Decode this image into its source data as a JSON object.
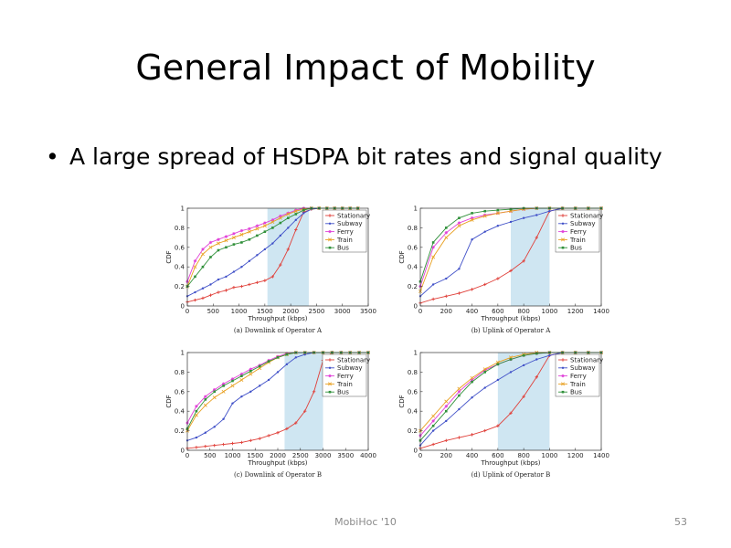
{
  "slide": {
    "title": "General Impact of Mobility",
    "bullet": "A large spread of HSDPA bit rates and signal quality",
    "footer_center": "MobiHoc '10",
    "page_number": "53"
  },
  "colors": {
    "Stationary": "#e0403a",
    "Subway": "#4050c8",
    "Ferry": "#e040d8",
    "Train": "#e8a020",
    "Bus": "#30903a",
    "shade": "#cfe6f2"
  },
  "chart_data": [
    {
      "type": "line",
      "caption": "(a) Downlink of Operator A",
      "xlabel": "Throughput (kbps)",
      "ylabel": "CDF",
      "xlim": [
        0,
        3500
      ],
      "ylim": [
        0,
        1
      ],
      "xticks": [
        0,
        500,
        1000,
        1500,
        2000,
        2500,
        3000,
        3500
      ],
      "yticks": [
        0,
        0.2,
        0.4,
        0.6,
        0.8,
        1
      ],
      "ytick_labels": [
        "0",
        "0.2",
        "0.4",
        "0.6",
        "0.8",
        "1"
      ],
      "shade": [
        1550,
        2350
      ],
      "legend": [
        "Stationary",
        "Subway",
        "Ferry",
        "Train",
        "Bus"
      ],
      "series": [
        {
          "name": "Stationary",
          "x": [
            0,
            150,
            300,
            450,
            600,
            750,
            900,
            1050,
            1200,
            1350,
            1500,
            1650,
            1800,
            1950,
            2100,
            2250,
            2400,
            2550,
            2700,
            2850,
            3000,
            3150,
            3300
          ],
          "y": [
            0.04,
            0.06,
            0.08,
            0.11,
            0.14,
            0.16,
            0.19,
            0.2,
            0.22,
            0.24,
            0.26,
            0.3,
            0.42,
            0.58,
            0.78,
            0.96,
            0.99,
            1,
            1,
            1,
            1,
            1,
            1
          ]
        },
        {
          "name": "Subway",
          "x": [
            0,
            150,
            300,
            450,
            600,
            750,
            900,
            1050,
            1200,
            1350,
            1500,
            1650,
            1800,
            1950,
            2100,
            2250,
            2400,
            2550,
            2700,
            2850,
            3000,
            3150,
            3300
          ],
          "y": [
            0.1,
            0.14,
            0.18,
            0.22,
            0.27,
            0.3,
            0.35,
            0.4,
            0.46,
            0.52,
            0.58,
            0.64,
            0.72,
            0.8,
            0.88,
            0.95,
            0.99,
            1,
            1,
            1,
            1,
            1,
            1
          ]
        },
        {
          "name": "Ferry",
          "x": [
            0,
            150,
            300,
            450,
            600,
            750,
            900,
            1050,
            1200,
            1350,
            1500,
            1650,
            1800,
            1950,
            2100,
            2250,
            2400,
            2550,
            2700,
            2850,
            3000,
            3150,
            3300
          ],
          "y": [
            0.25,
            0.46,
            0.58,
            0.65,
            0.68,
            0.71,
            0.74,
            0.77,
            0.79,
            0.82,
            0.85,
            0.88,
            0.92,
            0.95,
            0.98,
            1,
            1,
            1,
            1,
            1,
            1,
            1,
            1
          ]
        },
        {
          "name": "Train",
          "x": [
            0,
            150,
            300,
            450,
            600,
            750,
            900,
            1050,
            1200,
            1350,
            1500,
            1650,
            1800,
            1950,
            2100,
            2250,
            2400,
            2550,
            2700,
            2850,
            3000,
            3150,
            3300
          ],
          "y": [
            0.2,
            0.4,
            0.53,
            0.6,
            0.64,
            0.67,
            0.7,
            0.73,
            0.76,
            0.79,
            0.82,
            0.86,
            0.9,
            0.94,
            0.97,
            0.99,
            1,
            1,
            1,
            1,
            1,
            1,
            1
          ]
        },
        {
          "name": "Bus",
          "x": [
            0,
            150,
            300,
            450,
            600,
            750,
            900,
            1050,
            1200,
            1350,
            1500,
            1650,
            1800,
            1950,
            2100,
            2250,
            2400,
            2550,
            2700,
            2850,
            3000,
            3150,
            3300
          ],
          "y": [
            0.2,
            0.3,
            0.4,
            0.5,
            0.57,
            0.6,
            0.63,
            0.65,
            0.68,
            0.72,
            0.76,
            0.8,
            0.85,
            0.9,
            0.94,
            0.98,
            1,
            1,
            1,
            1,
            1,
            1,
            1
          ]
        }
      ]
    },
    {
      "type": "line",
      "caption": "(b) Uplink of Operator A",
      "xlabel": "Throughput (kbps)",
      "ylabel": "CDF",
      "xlim": [
        0,
        1400
      ],
      "ylim": [
        0,
        1
      ],
      "xticks": [
        0,
        200,
        400,
        600,
        800,
        1000,
        1200,
        1400
      ],
      "yticks": [
        0,
        0.2,
        0.4,
        0.6,
        0.8,
        1
      ],
      "ytick_labels": [
        "0",
        "0.2",
        "0.4",
        "0.6",
        "0.8",
        "1"
      ],
      "shade": [
        700,
        1000
      ],
      "legend": [
        "Stationary",
        "Subway",
        "Ferry",
        "Train",
        "Bus"
      ],
      "series": [
        {
          "name": "Stationary",
          "x": [
            0,
            100,
            200,
            300,
            400,
            500,
            600,
            700,
            800,
            900,
            1000,
            1100,
            1200,
            1300,
            1400
          ],
          "y": [
            0.03,
            0.07,
            0.1,
            0.13,
            0.17,
            0.22,
            0.28,
            0.36,
            0.46,
            0.7,
            0.97,
            1,
            1,
            1,
            1
          ]
        },
        {
          "name": "Subway",
          "x": [
            0,
            100,
            200,
            300,
            400,
            500,
            600,
            700,
            800,
            900,
            1000,
            1100,
            1200,
            1300,
            1400
          ],
          "y": [
            0.1,
            0.22,
            0.28,
            0.38,
            0.68,
            0.76,
            0.82,
            0.86,
            0.9,
            0.93,
            0.97,
            1,
            1,
            1,
            1
          ]
        },
        {
          "name": "Ferry",
          "x": [
            0,
            100,
            200,
            300,
            400,
            500,
            600,
            700,
            800,
            900,
            1000,
            1100,
            1200,
            1300,
            1400
          ],
          "y": [
            0.2,
            0.6,
            0.75,
            0.85,
            0.9,
            0.93,
            0.95,
            0.97,
            0.99,
            1,
            1,
            1,
            1,
            1,
            1
          ]
        },
        {
          "name": "Train",
          "x": [
            0,
            100,
            200,
            300,
            400,
            500,
            600,
            700,
            800,
            900,
            1000,
            1100,
            1200,
            1300,
            1400
          ],
          "y": [
            0.15,
            0.5,
            0.7,
            0.82,
            0.88,
            0.92,
            0.95,
            0.97,
            0.99,
            1,
            1,
            1,
            1,
            1,
            1
          ]
        },
        {
          "name": "Bus",
          "x": [
            0,
            100,
            200,
            300,
            400,
            500,
            600,
            700,
            800,
            900,
            1000,
            1100,
            1200,
            1300,
            1400
          ],
          "y": [
            0.25,
            0.65,
            0.8,
            0.9,
            0.95,
            0.97,
            0.98,
            0.99,
            1,
            1,
            1,
            1,
            1,
            1,
            1
          ]
        }
      ]
    },
    {
      "type": "line",
      "caption": "(c) Downlink of Operator B",
      "xlabel": "Throughput (kbps)",
      "ylabel": "CDF",
      "xlim": [
        0,
        4000
      ],
      "ylim": [
        0,
        1
      ],
      "xticks": [
        0,
        500,
        1000,
        1500,
        2000,
        2500,
        3000,
        3500,
        4000
      ],
      "yticks": [
        0,
        0.2,
        0.4,
        0.6,
        0.8,
        1
      ],
      "ytick_labels": [
        "0",
        "0.2",
        "0.4",
        "0.6",
        "0.8",
        "1"
      ],
      "shade": [
        2150,
        3000
      ],
      "legend": [
        "Stationary",
        "Subway",
        "Ferry",
        "Train",
        "Bus"
      ],
      "series": [
        {
          "name": "Stationary",
          "x": [
            0,
            200,
            400,
            600,
            800,
            1000,
            1200,
            1400,
            1600,
            1800,
            2000,
            2200,
            2400,
            2600,
            2800,
            3000,
            3200,
            3400,
            3600,
            3800,
            4000
          ],
          "y": [
            0.02,
            0.03,
            0.04,
            0.05,
            0.06,
            0.07,
            0.08,
            0.1,
            0.12,
            0.15,
            0.18,
            0.22,
            0.28,
            0.4,
            0.6,
            0.92,
            1,
            1,
            1,
            1,
            1
          ]
        },
        {
          "name": "Subway",
          "x": [
            0,
            200,
            400,
            600,
            800,
            1000,
            1200,
            1400,
            1600,
            1800,
            2000,
            2200,
            2400,
            2600,
            2800,
            3000,
            3200,
            3400,
            3600,
            3800,
            4000
          ],
          "y": [
            0.1,
            0.13,
            0.18,
            0.24,
            0.32,
            0.48,
            0.55,
            0.6,
            0.66,
            0.72,
            0.8,
            0.88,
            0.95,
            0.98,
            1,
            1,
            1,
            1,
            1,
            1,
            1
          ]
        },
        {
          "name": "Ferry",
          "x": [
            0,
            200,
            400,
            600,
            800,
            1000,
            1200,
            1400,
            1600,
            1800,
            2000,
            2200,
            2400,
            2600,
            2800,
            3000,
            3200,
            3400,
            3600,
            3800,
            4000
          ],
          "y": [
            0.28,
            0.45,
            0.55,
            0.62,
            0.68,
            0.73,
            0.78,
            0.83,
            0.87,
            0.92,
            0.96,
            0.99,
            1,
            1,
            1,
            1,
            1,
            1,
            1,
            1,
            1
          ]
        },
        {
          "name": "Train",
          "x": [
            0,
            200,
            400,
            600,
            800,
            1000,
            1200,
            1400,
            1600,
            1800,
            2000,
            2200,
            2400,
            2600,
            2800,
            3000,
            3200,
            3400,
            3600,
            3800,
            4000
          ],
          "y": [
            0.2,
            0.36,
            0.46,
            0.54,
            0.6,
            0.66,
            0.72,
            0.78,
            0.84,
            0.9,
            0.95,
            0.98,
            1,
            1,
            1,
            1,
            1,
            1,
            1,
            1,
            1
          ]
        },
        {
          "name": "Bus",
          "x": [
            0,
            200,
            400,
            600,
            800,
            1000,
            1200,
            1400,
            1600,
            1800,
            2000,
            2200,
            2400,
            2600,
            2800,
            3000,
            3200,
            3400,
            3600,
            3800,
            4000
          ],
          "y": [
            0.22,
            0.4,
            0.52,
            0.6,
            0.66,
            0.71,
            0.76,
            0.81,
            0.86,
            0.91,
            0.95,
            0.98,
            1,
            1,
            1,
            1,
            1,
            1,
            1,
            1,
            1
          ]
        }
      ]
    },
    {
      "type": "line",
      "caption": "(d) Uplink of Operator B",
      "xlabel": "Throughput (kbps)",
      "ylabel": "CDF",
      "xlim": [
        0,
        1400
      ],
      "ylim": [
        0,
        1
      ],
      "xticks": [
        0,
        200,
        400,
        600,
        800,
        1000,
        1200,
        1400
      ],
      "yticks": [
        0,
        0.2,
        0.4,
        0.6,
        0.8,
        1
      ],
      "ytick_labels": [
        "0",
        "0.2",
        "0.4",
        "0.6",
        "0.8",
        "1"
      ],
      "shade": [
        600,
        1000
      ],
      "legend": [
        "Stationary",
        "Subway",
        "Ferry",
        "Train",
        "Bus"
      ],
      "series": [
        {
          "name": "Stationary",
          "x": [
            0,
            100,
            200,
            300,
            400,
            500,
            600,
            700,
            800,
            900,
            1000,
            1100,
            1200,
            1300,
            1400
          ],
          "y": [
            0.02,
            0.06,
            0.1,
            0.13,
            0.16,
            0.2,
            0.25,
            0.38,
            0.55,
            0.75,
            0.97,
            1,
            1,
            1,
            1
          ]
        },
        {
          "name": "Subway",
          "x": [
            0,
            100,
            200,
            300,
            400,
            500,
            600,
            700,
            800,
            900,
            1000,
            1100,
            1200,
            1300,
            1400
          ],
          "y": [
            0.05,
            0.2,
            0.3,
            0.42,
            0.54,
            0.64,
            0.72,
            0.8,
            0.87,
            0.93,
            0.97,
            1,
            1,
            1,
            1
          ]
        },
        {
          "name": "Ferry",
          "x": [
            0,
            100,
            200,
            300,
            400,
            500,
            600,
            700,
            800,
            900,
            1000,
            1100,
            1200,
            1300,
            1400
          ],
          "y": [
            0.15,
            0.3,
            0.45,
            0.6,
            0.72,
            0.82,
            0.88,
            0.93,
            0.97,
            0.99,
            1,
            1,
            1,
            1,
            1
          ]
        },
        {
          "name": "Train",
          "x": [
            0,
            100,
            200,
            300,
            400,
            500,
            600,
            700,
            800,
            900,
            1000,
            1100,
            1200,
            1300,
            1400
          ],
          "y": [
            0.2,
            0.35,
            0.5,
            0.63,
            0.74,
            0.83,
            0.9,
            0.95,
            0.98,
            1,
            1,
            1,
            1,
            1,
            1
          ]
        },
        {
          "name": "Bus",
          "x": [
            0,
            100,
            200,
            300,
            400,
            500,
            600,
            700,
            800,
            900,
            1000,
            1100,
            1200,
            1300,
            1400
          ],
          "y": [
            0.1,
            0.25,
            0.4,
            0.56,
            0.7,
            0.8,
            0.88,
            0.93,
            0.97,
            0.99,
            1,
            1,
            1,
            1,
            1
          ]
        }
      ]
    }
  ]
}
